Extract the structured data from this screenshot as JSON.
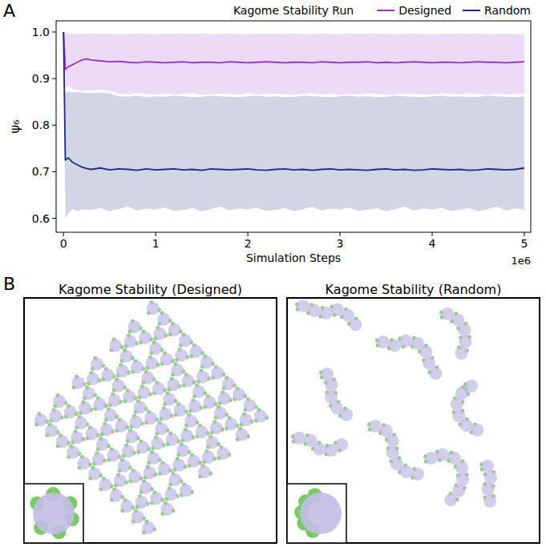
{
  "chart_data": {
    "type": "line",
    "panel_label": "A",
    "title": "Kagome Stability Run",
    "x_label": "Simulation Steps",
    "x_offset_label": "1e6",
    "y_label": "ψ₆",
    "x": [
      0,
      0.02,
      0.05,
      0.1,
      0.15,
      0.2,
      0.25,
      0.3,
      0.4,
      0.5,
      0.6,
      0.7,
      0.8,
      0.9,
      1.0,
      1.1,
      1.2,
      1.3,
      1.4,
      1.5,
      1.6,
      1.7,
      1.8,
      1.9,
      2.0,
      2.1,
      2.2,
      2.3,
      2.4,
      2.5,
      2.6,
      2.7,
      2.8,
      2.9,
      3.0,
      3.1,
      3.2,
      3.3,
      3.4,
      3.5,
      3.6,
      3.7,
      3.8,
      3.9,
      4.0,
      4.1,
      4.2,
      4.3,
      4.4,
      4.5,
      4.6,
      4.7,
      4.8,
      4.9,
      5.0
    ],
    "series": [
      {
        "name": "Designed",
        "color": "#9932cc",
        "values": [
          1.0,
          0.92,
          0.925,
          0.93,
          0.935,
          0.94,
          0.942,
          0.94,
          0.938,
          0.936,
          0.937,
          0.935,
          0.934,
          0.936,
          0.935,
          0.934,
          0.935,
          0.936,
          0.934,
          0.935,
          0.935,
          0.934,
          0.936,
          0.935,
          0.934,
          0.935,
          0.936,
          0.935,
          0.934,
          0.935,
          0.935,
          0.934,
          0.936,
          0.935,
          0.934,
          0.935,
          0.935,
          0.936,
          0.934,
          0.935,
          0.934,
          0.935,
          0.936,
          0.935,
          0.934,
          0.935,
          0.935,
          0.934,
          0.935,
          0.936,
          0.935,
          0.935,
          0.934,
          0.935,
          0.936
        ],
        "lower": [
          1.0,
          0.88,
          0.885,
          0.878,
          0.876,
          0.875,
          0.875,
          0.875,
          0.876,
          0.874,
          0.868,
          0.866,
          0.869,
          0.867,
          0.865,
          0.868,
          0.866,
          0.867,
          0.869,
          0.865,
          0.866,
          0.868,
          0.867,
          0.865,
          0.869,
          0.866,
          0.867,
          0.868,
          0.866,
          0.865,
          0.867,
          0.869,
          0.866,
          0.868,
          0.865,
          0.867,
          0.866,
          0.869,
          0.867,
          0.865,
          0.866,
          0.868,
          0.867,
          0.866,
          0.865,
          0.868,
          0.867,
          0.866,
          0.869,
          0.867,
          0.865,
          0.868,
          0.866,
          0.867,
          0.868
        ],
        "upper": [
          1.0,
          0.998,
          0.996,
          0.997,
          0.996,
          0.997,
          0.996,
          0.997,
          0.996,
          0.997,
          0.995,
          0.996,
          0.997,
          0.996,
          0.995,
          0.997,
          0.996,
          0.997,
          0.996,
          0.997,
          0.995,
          0.996,
          0.997,
          0.996,
          0.995,
          0.997,
          0.996,
          0.997,
          0.996,
          0.997,
          0.995,
          0.996,
          0.997,
          0.996,
          0.995,
          0.997,
          0.996,
          0.997,
          0.996,
          0.997,
          0.995,
          0.996,
          0.997,
          0.996,
          0.995,
          0.997,
          0.996,
          0.997,
          0.996,
          0.997,
          0.995,
          0.996,
          0.997,
          0.996,
          0.995
        ]
      },
      {
        "name": "Random",
        "color": "#1f2d7a",
        "values": [
          1.0,
          0.725,
          0.73,
          0.72,
          0.715,
          0.71,
          0.707,
          0.705,
          0.708,
          0.704,
          0.706,
          0.705,
          0.703,
          0.706,
          0.704,
          0.705,
          0.706,
          0.704,
          0.705,
          0.703,
          0.706,
          0.705,
          0.704,
          0.705,
          0.706,
          0.704,
          0.703,
          0.705,
          0.706,
          0.704,
          0.705,
          0.703,
          0.705,
          0.706,
          0.704,
          0.705,
          0.704,
          0.703,
          0.705,
          0.706,
          0.704,
          0.705,
          0.703,
          0.704,
          0.706,
          0.705,
          0.704,
          0.705,
          0.703,
          0.704,
          0.706,
          0.705,
          0.704,
          0.705,
          0.708
        ],
        "lower": [
          1.0,
          0.6,
          0.61,
          0.62,
          0.615,
          0.62,
          0.618,
          0.618,
          0.622,
          0.615,
          0.62,
          0.625,
          0.617,
          0.621,
          0.619,
          0.623,
          0.616,
          0.618,
          0.622,
          0.615,
          0.62,
          0.625,
          0.617,
          0.621,
          0.619,
          0.623,
          0.616,
          0.618,
          0.622,
          0.615,
          0.62,
          0.625,
          0.617,
          0.621,
          0.619,
          0.623,
          0.616,
          0.618,
          0.622,
          0.615,
          0.62,
          0.625,
          0.617,
          0.621,
          0.619,
          0.623,
          0.616,
          0.618,
          0.622,
          0.615,
          0.62,
          0.625,
          0.617,
          0.621,
          0.619
        ],
        "upper": [
          1.0,
          0.87,
          0.872,
          0.87,
          0.871,
          0.87,
          0.869,
          0.869,
          0.87,
          0.868,
          0.862,
          0.861,
          0.863,
          0.86,
          0.862,
          0.861,
          0.863,
          0.862,
          0.86,
          0.861,
          0.863,
          0.862,
          0.861,
          0.86,
          0.862,
          0.863,
          0.861,
          0.862,
          0.86,
          0.861,
          0.863,
          0.862,
          0.861,
          0.86,
          0.862,
          0.863,
          0.861,
          0.862,
          0.86,
          0.861,
          0.863,
          0.862,
          0.861,
          0.86,
          0.862,
          0.863,
          0.861,
          0.862,
          0.86,
          0.861,
          0.863,
          0.862,
          0.861,
          0.86,
          0.862
        ]
      }
    ],
    "xlim": [
      -0.08,
      5.07
    ],
    "xticks": [
      0,
      1,
      2,
      3,
      4,
      5
    ],
    "ylim": [
      0.57,
      1.024
    ],
    "yticks": [
      0.6,
      0.7,
      0.8,
      0.9,
      {
        "value": 1,
        "label": "1.0"
      }
    ],
    "legend": "top",
    "grid": false
  },
  "figure_b": {
    "panel_label": "B",
    "images": [
      {
        "title": "Kagome Stability (Designed)"
      },
      {
        "title": "Kagome Stability (Random)"
      }
    ]
  }
}
